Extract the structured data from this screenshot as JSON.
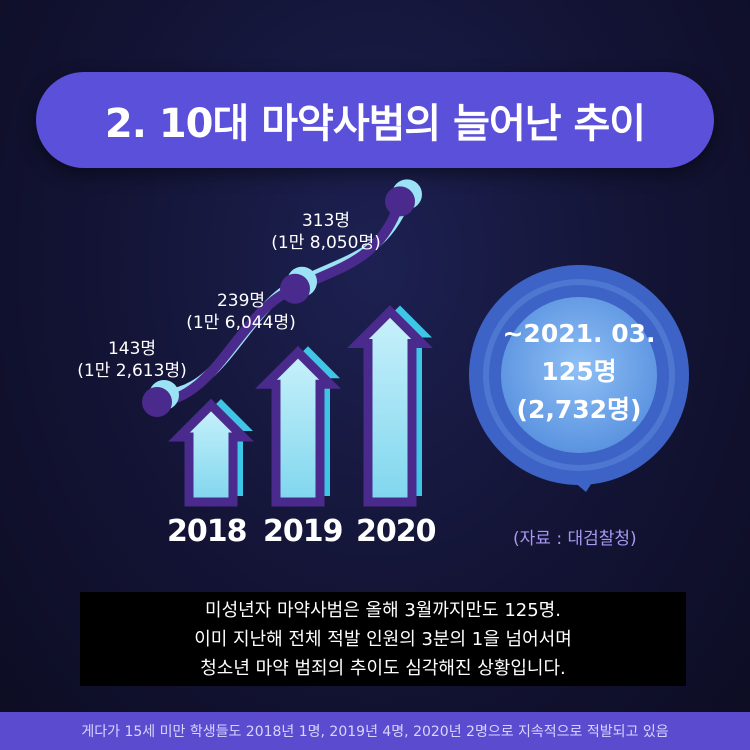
{
  "title": "2. 10대 마약사범의 늘어난 추이",
  "chart_data": {
    "type": "line",
    "categories": [
      "2018",
      "2019",
      "2020"
    ],
    "series": [
      {
        "values": [
          143,
          239,
          313
        ],
        "totals": [
          12613,
          16044,
          18050
        ]
      }
    ],
    "point_labels": [
      {
        "count": "143명",
        "total": "(1만 2,613명)"
      },
      {
        "count": "239명",
        "total": "(1만 6,044명)"
      },
      {
        "count": "313명",
        "total": "(1만 8,050명)"
      }
    ]
  },
  "bubble": {
    "line1": "~2021. 03.",
    "line2": "125명",
    "line3": "(2,732명)"
  },
  "source": "(자료 : 대검찰청)",
  "description": [
    "미성년자 마약사범은 올해 3월까지만도 125명.",
    "이미 지난해 전체 적발 인원의 3분의 1을 넘어서며",
    "청소년 마약 범죄의 추이도 심각해진 상황입니다."
  ],
  "footer": "게다가 15세 미만 학생들도 2018년 1명, 2019년 4명, 2020년 2명으로 지속적으로 적발되고 있음",
  "colors": {
    "accent": "#5a50d9",
    "arrow_fill": "#7fd6ee",
    "arrow_shadow": "#3ec6e6",
    "arrow_outline": "#4a2a8c",
    "curve": "#4a2a8c",
    "bubble_outer": "#3d63c6",
    "bubble_inner": "#6fa8ea"
  }
}
